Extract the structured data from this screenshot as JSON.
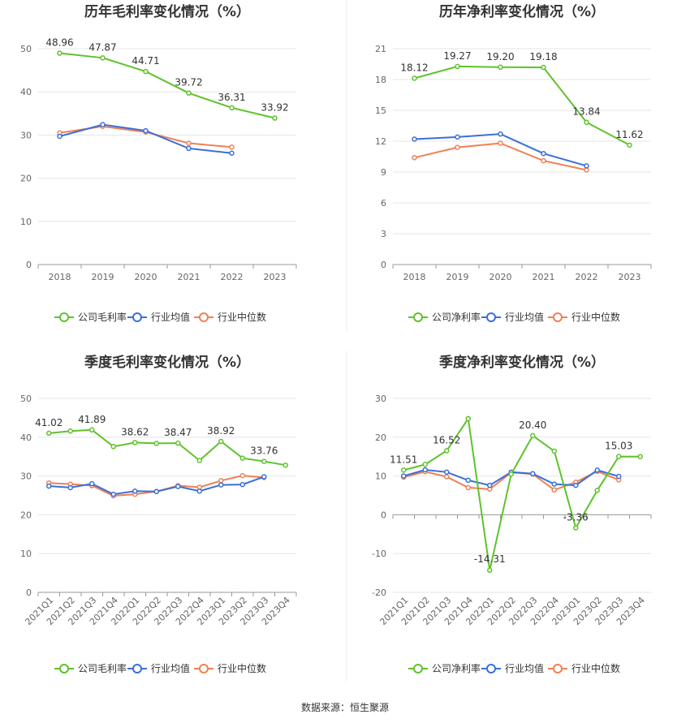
{
  "colors": {
    "company": "#5fc22c",
    "industry_avg": "#3a6fd8",
    "industry_median": "#f08054",
    "grid": "#e5e5e5",
    "axis": "#999999",
    "divider": "#eeeeee"
  },
  "source": "数据来源：恒生聚源",
  "chart_data": [
    {
      "id": "annual-gross",
      "type": "line",
      "title": "历年毛利率变化情况（%）",
      "categories": [
        "2018",
        "2019",
        "2020",
        "2021",
        "2022",
        "2023"
      ],
      "ylim": [
        0,
        50
      ],
      "yticks": [
        0,
        10,
        20,
        30,
        40,
        50
      ],
      "grid": true,
      "legend_position": "bottom",
      "series": [
        {
          "name": "公司毛利率",
          "color_key": "company",
          "values": [
            48.96,
            47.87,
            44.71,
            39.72,
            36.31,
            33.92
          ],
          "labels": [
            "48.96",
            "47.87",
            "44.71",
            "39.72",
            "36.31",
            "33.92"
          ]
        },
        {
          "name": "行业均值",
          "color_key": "industry_avg",
          "values": [
            29.7,
            32.4,
            31.0,
            26.9,
            25.8,
            null
          ]
        },
        {
          "name": "行业中位数",
          "color_key": "industry_median",
          "values": [
            30.5,
            32.0,
            30.7,
            28.1,
            27.2,
            null
          ]
        }
      ]
    },
    {
      "id": "annual-net",
      "type": "line",
      "title": "历年净利率变化情况（%）",
      "categories": [
        "2018",
        "2019",
        "2020",
        "2021",
        "2022",
        "2023"
      ],
      "ylim": [
        0,
        21
      ],
      "yticks": [
        0,
        3,
        6,
        9,
        12,
        15,
        18,
        21
      ],
      "grid": true,
      "legend_position": "bottom",
      "series": [
        {
          "name": "公司净利率",
          "color_key": "company",
          "values": [
            18.12,
            19.27,
            19.2,
            19.18,
            13.84,
            11.62
          ],
          "labels": [
            "18.12",
            "19.27",
            "19.20",
            "19.18",
            "13.84",
            "11.62"
          ]
        },
        {
          "name": "行业均值",
          "color_key": "industry_avg",
          "values": [
            12.2,
            12.4,
            12.7,
            10.8,
            9.6,
            null
          ]
        },
        {
          "name": "行业中位数",
          "color_key": "industry_median",
          "values": [
            10.4,
            11.4,
            11.8,
            10.1,
            9.2,
            null
          ]
        }
      ]
    },
    {
      "id": "quarterly-gross",
      "type": "line",
      "title": "季度毛利率变化情况（%）",
      "categories": [
        "2021Q1",
        "2021Q2",
        "2021Q3",
        "2021Q4",
        "2022Q1",
        "2022Q2",
        "2022Q3",
        "2022Q4",
        "2023Q1",
        "2023Q2",
        "2023Q3",
        "2023Q4"
      ],
      "ylim": [
        0,
        50
      ],
      "yticks": [
        0,
        10,
        20,
        30,
        40,
        50
      ],
      "grid": true,
      "legend_position": "bottom",
      "series": [
        {
          "name": "公司毛利率",
          "color_key": "company",
          "values": [
            41.02,
            41.6,
            41.89,
            37.6,
            38.62,
            38.4,
            38.47,
            34.0,
            38.92,
            34.6,
            33.76,
            32.8
          ],
          "labels": [
            "41.02",
            null,
            "41.89",
            null,
            "38.62",
            null,
            "38.47",
            null,
            "38.92",
            null,
            "33.76",
            null
          ]
        },
        {
          "name": "行业均值",
          "color_key": "industry_avg",
          "values": [
            27.4,
            27.0,
            28.0,
            25.3,
            26.1,
            26.0,
            27.3,
            26.1,
            27.7,
            27.8,
            29.8,
            null
          ]
        },
        {
          "name": "行业中位数",
          "color_key": "industry_median",
          "values": [
            28.2,
            27.9,
            27.5,
            24.9,
            25.3,
            26.0,
            27.5,
            27.1,
            28.8,
            30.1,
            29.6,
            null
          ]
        }
      ]
    },
    {
      "id": "quarterly-net",
      "type": "line",
      "title": "季度净利率变化情况（%）",
      "categories": [
        "2021Q1",
        "2021Q2",
        "2021Q3",
        "2021Q4",
        "2022Q1",
        "2022Q2",
        "2022Q3",
        "2022Q4",
        "2023Q1",
        "2023Q2",
        "2023Q3",
        "2023Q4"
      ],
      "ylim": [
        -20,
        30
      ],
      "yticks": [
        -20,
        -10,
        0,
        10,
        20,
        30
      ],
      "grid": true,
      "legend_position": "bottom",
      "series": [
        {
          "name": "公司净利率",
          "color_key": "company",
          "values": [
            11.51,
            13.0,
            16.52,
            24.8,
            -14.31,
            10.5,
            20.4,
            16.4,
            -3.36,
            6.3,
            15.03,
            15.0
          ],
          "labels": [
            "11.51",
            null,
            "16.52",
            null,
            "-14.31",
            null,
            "20.40",
            null,
            "-3.36",
            null,
            "15.03",
            null
          ]
        },
        {
          "name": "行业均值",
          "color_key": "industry_avg",
          "values": [
            10.0,
            11.6,
            11.0,
            8.9,
            7.6,
            11.0,
            10.6,
            7.9,
            7.6,
            11.5,
            9.9,
            null
          ]
        },
        {
          "name": "行业中位数",
          "color_key": "industry_median",
          "values": [
            9.7,
            11.1,
            9.8,
            7.0,
            6.6,
            10.9,
            10.5,
            6.4,
            8.4,
            11.2,
            9.0,
            null
          ]
        }
      ]
    }
  ]
}
